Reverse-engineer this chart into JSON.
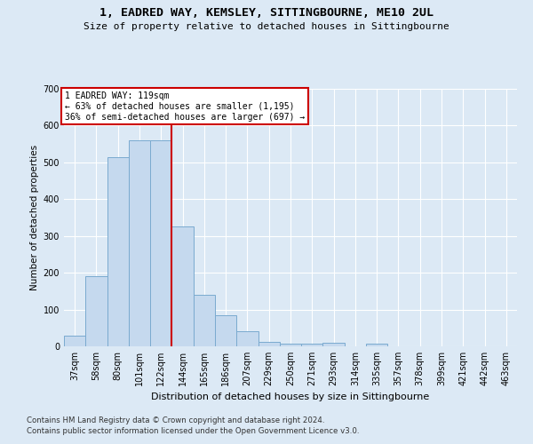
{
  "title1": "1, EADRED WAY, KEMSLEY, SITTINGBOURNE, ME10 2UL",
  "title2": "Size of property relative to detached houses in Sittingbourne",
  "xlabel": "Distribution of detached houses by size in Sittingbourne",
  "ylabel": "Number of detached properties",
  "categories": [
    "37sqm",
    "58sqm",
    "80sqm",
    "101sqm",
    "122sqm",
    "144sqm",
    "165sqm",
    "186sqm",
    "207sqm",
    "229sqm",
    "250sqm",
    "271sqm",
    "293sqm",
    "314sqm",
    "335sqm",
    "357sqm",
    "378sqm",
    "399sqm",
    "421sqm",
    "442sqm",
    "463sqm"
  ],
  "values": [
    30,
    190,
    515,
    560,
    560,
    325,
    140,
    85,
    40,
    13,
    7,
    7,
    10,
    0,
    7,
    0,
    0,
    0,
    0,
    0,
    0
  ],
  "bar_color": "#c5d9ee",
  "bar_edge_color": "#7aaacf",
  "vline_color": "#cc0000",
  "vline_index": 4.5,
  "annotation_text": "1 EADRED WAY: 119sqm\n← 63% of detached houses are smaller (1,195)\n36% of semi-detached houses are larger (697) →",
  "bg_color": "#dce9f5",
  "footer_line1": "Contains HM Land Registry data © Crown copyright and database right 2024.",
  "footer_line2": "Contains public sector information licensed under the Open Government Licence v3.0.",
  "ylim": [
    0,
    700
  ],
  "yticks": [
    0,
    100,
    200,
    300,
    400,
    500,
    600,
    700
  ]
}
